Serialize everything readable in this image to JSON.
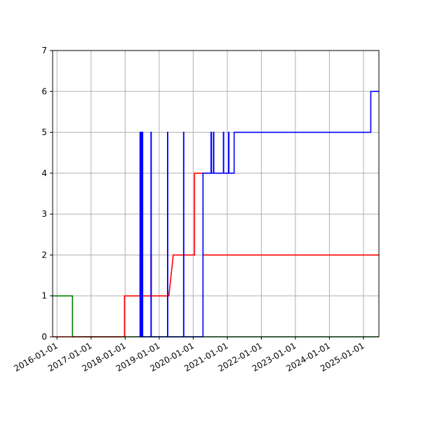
{
  "chart_data": {
    "type": "line",
    "title": "",
    "xlabel": "",
    "ylabel": "",
    "x_axis_type": "date",
    "xlim": [
      "2015-11-15",
      "2025-06-15"
    ],
    "ylim": [
      0,
      7
    ],
    "grid": true,
    "legend": "none",
    "x_ticks": [
      "2016-01-01",
      "2017-01-01",
      "2018-01-01",
      "2019-01-01",
      "2020-01-01",
      "2021-01-01",
      "2022-01-01",
      "2023-01-01",
      "2024-01-01",
      "2025-01-01"
    ],
    "y_ticks": [
      0,
      1,
      2,
      3,
      4,
      5,
      6,
      7
    ],
    "series": [
      {
        "color": "#008000",
        "step": true,
        "points": [
          [
            "2015-11-15",
            1
          ],
          [
            "2016-06-15",
            1
          ],
          [
            "2016-06-15",
            0
          ],
          [
            "2025-06-15",
            0
          ]
        ]
      },
      {
        "color": "#ff0000",
        "step": true,
        "points": [
          [
            "2015-11-15",
            0
          ],
          [
            "2017-12-25",
            0
          ],
          [
            "2017-12-25",
            1
          ],
          [
            "2018-06-10",
            1
          ],
          [
            "2018-06-10",
            2
          ],
          [
            "2018-06-12",
            2
          ],
          [
            "2018-06-12",
            1
          ],
          [
            "2018-06-16",
            1
          ],
          [
            "2018-06-16",
            2
          ],
          [
            "2018-06-18",
            2
          ],
          [
            "2018-06-18",
            1
          ],
          [
            "2018-06-22",
            1
          ],
          [
            "2018-06-22",
            2
          ],
          [
            "2018-06-24",
            2
          ],
          [
            "2018-06-24",
            1
          ],
          [
            "2018-07-01",
            1
          ],
          [
            "2018-07-01",
            2
          ],
          [
            "2018-07-03",
            2
          ],
          [
            "2018-07-03",
            1
          ],
          [
            "2018-10-05",
            1
          ],
          [
            "2018-10-05",
            2
          ],
          [
            "2018-10-07",
            2
          ],
          [
            "2018-10-07",
            1
          ],
          [
            "2019-04-15",
            1
          ],
          [
            "2019-06-01",
            2
          ],
          [
            "2020-01-15",
            2
          ],
          [
            "2020-01-15",
            4
          ],
          [
            "2020-04-15",
            4
          ],
          [
            "2020-04-15",
            2
          ],
          [
            "2025-06-15",
            2
          ]
        ]
      },
      {
        "color": "#0000ff",
        "step": true,
        "points": [
          [
            "2018-06-10",
            0
          ],
          [
            "2018-06-10",
            5
          ],
          [
            "2018-06-14",
            5
          ],
          [
            "2018-06-14",
            0
          ],
          [
            "2018-06-18",
            0
          ],
          [
            "2018-06-18",
            5
          ],
          [
            "2018-06-22",
            5
          ],
          [
            "2018-06-22",
            0
          ],
          [
            "2018-06-26",
            0
          ],
          [
            "2018-06-26",
            5
          ],
          [
            "2018-07-01",
            5
          ],
          [
            "2018-07-01",
            0
          ],
          [
            "2018-07-05",
            0
          ],
          [
            "2018-07-05",
            5
          ],
          [
            "2018-07-08",
            5
          ],
          [
            "2018-07-08",
            0
          ],
          [
            "2018-10-05",
            0
          ],
          [
            "2018-10-05",
            5
          ],
          [
            "2018-10-08",
            5
          ],
          [
            "2018-10-08",
            0
          ],
          [
            "2019-04-01",
            0
          ],
          [
            "2019-04-01",
            5
          ],
          [
            "2019-04-03",
            5
          ],
          [
            "2019-04-03",
            0
          ],
          [
            "2019-09-20",
            0
          ],
          [
            "2019-09-20",
            5
          ],
          [
            "2019-09-22",
            5
          ],
          [
            "2019-09-22",
            0
          ],
          [
            "2020-04-15",
            0
          ],
          [
            "2020-04-15",
            4
          ],
          [
            "2020-07-10",
            4
          ],
          [
            "2020-07-10",
            5
          ],
          [
            "2020-07-14",
            5
          ],
          [
            "2020-07-14",
            4
          ],
          [
            "2020-08-05",
            4
          ],
          [
            "2020-08-05",
            5
          ],
          [
            "2020-08-09",
            5
          ],
          [
            "2020-08-09",
            4
          ],
          [
            "2020-11-20",
            4
          ],
          [
            "2020-11-20",
            5
          ],
          [
            "2020-11-23",
            5
          ],
          [
            "2020-11-23",
            4
          ],
          [
            "2021-01-15",
            4
          ],
          [
            "2021-01-15",
            5
          ],
          [
            "2021-01-18",
            5
          ],
          [
            "2021-01-18",
            4
          ],
          [
            "2021-03-15",
            4
          ],
          [
            "2021-03-15",
            5
          ],
          [
            "2025-03-20",
            5
          ],
          [
            "2025-03-20",
            6
          ],
          [
            "2025-06-15",
            6
          ]
        ]
      }
    ],
    "colors": {
      "grid": "#b0b0b0",
      "axis": "#000000"
    }
  }
}
